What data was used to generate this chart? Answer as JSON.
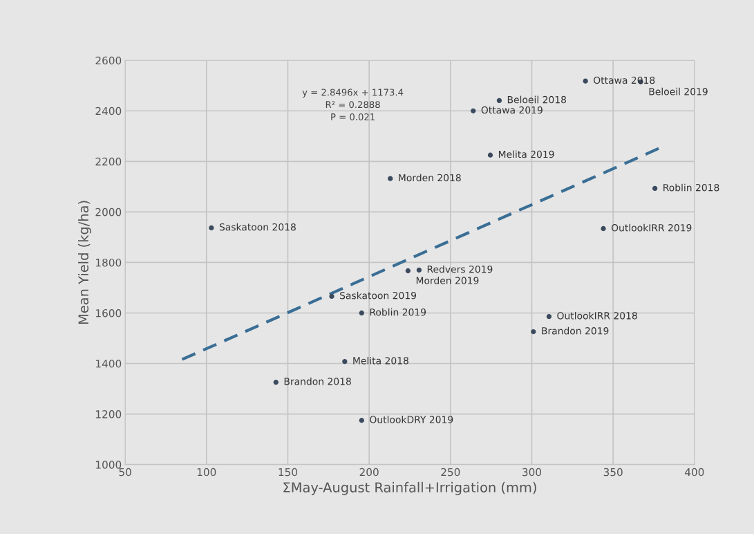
{
  "chart_data": {
    "type": "scatter",
    "xlabel": "ΣMay-August Rainfall+Irrigation (mm)",
    "ylabel": "Mean Yield (kg/ha)",
    "xlim": [
      50,
      400
    ],
    "xticks": [
      50,
      100,
      150,
      200,
      250,
      300,
      350,
      400
    ],
    "ylim": [
      1000,
      2600
    ],
    "yticks": [
      1000,
      1200,
      1400,
      1600,
      1800,
      2000,
      2200,
      2400,
      2600
    ],
    "grid": true,
    "legend": false,
    "series": [
      {
        "marker": "circle",
        "color": "#3b4a5e",
        "x": [
          333,
          367,
          280,
          264,
          274.5,
          213,
          375.7,
          103,
          344,
          230.7,
          223.9,
          177,
          195.4,
          310.6,
          301,
          185,
          142.7,
          195.4
        ],
        "values": [
          2518,
          2515,
          2441,
          2400,
          2225,
          2132,
          2093,
          1937,
          1934,
          1770,
          1767,
          1666,
          1600,
          1586,
          1526,
          1408,
          1326,
          1175
        ]
      },
      {
        "type": "line",
        "color": "#3a6e95",
        "line_style": "dashed",
        "x": [
          85,
          378
        ],
        "values": [
          1416,
          2251
        ]
      }
    ],
    "annotations": [
      {
        "text": "Ottawa 2018",
        "x": 333,
        "y": 2518
      },
      {
        "text": "Beloeil 2019",
        "x": 367,
        "y": 2515
      },
      {
        "text": "Beloeil 2018",
        "x": 280,
        "y": 2441
      },
      {
        "text": "Ottawa 2019",
        "x": 264,
        "y": 2400
      },
      {
        "text": "Melita 2019",
        "x": 274.5,
        "y": 2225
      },
      {
        "text": "Morden 2018",
        "x": 213,
        "y": 2132
      },
      {
        "text": "Roblin 2018",
        "x": 375.7,
        "y": 2093
      },
      {
        "text": "Saskatoon 2018",
        "x": 103,
        "y": 1937
      },
      {
        "text": "OutlookIRR 2019",
        "x": 344,
        "y": 1934
      },
      {
        "text": "Redvers 2019",
        "x": 230.7,
        "y": 1770
      },
      {
        "text": "Morden 2019",
        "x": 223.9,
        "y": 1767
      },
      {
        "text": "Saskatoon 2019",
        "x": 177,
        "y": 1666
      },
      {
        "text": "Roblin 2019",
        "x": 195.4,
        "y": 1600
      },
      {
        "text": "OutlookIRR 2018",
        "x": 310.6,
        "y": 1586
      },
      {
        "text": "Brandon 2019",
        "x": 301,
        "y": 1526
      },
      {
        "text": "Melita 2018",
        "x": 185,
        "y": 1408
      },
      {
        "text": "Brandon 2018",
        "x": 142.7,
        "y": 1326
      },
      {
        "text": "OutlookDRY 2019",
        "x": 195.4,
        "y": 1175
      },
      "y = 2.8496x + 1173.4\nR² = 0.2888\nP = 0.021"
    ]
  }
}
